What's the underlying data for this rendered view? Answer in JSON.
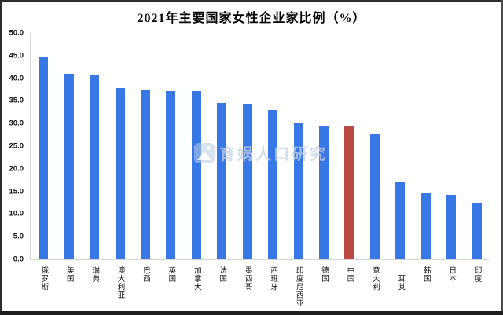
{
  "title": "2021年主要国家女性企业家比例（%）",
  "watermark": {
    "text": "育娲人口研究"
  },
  "frame": {
    "edge_color": "#2d2d2d",
    "bottom_bar_color": "#1e1e1e"
  },
  "chart_data": {
    "type": "bar",
    "title": "2021年主要国家女性企业家比例（%）",
    "categories": [
      "俄罗斯",
      "美国",
      "瑞典",
      "澳大利亚",
      "巴西",
      "英国",
      "加拿大",
      "法国",
      "墨西哥",
      "西班牙",
      "印度尼西亚",
      "德国",
      "中国",
      "意大利",
      "土耳其",
      "韩国",
      "日本",
      "印度"
    ],
    "values": [
      44.7,
      40.9,
      40.7,
      37.8,
      37.3,
      37.2,
      37.1,
      34.5,
      34.3,
      33.0,
      30.2,
      29.6,
      29.5,
      27.8,
      17.1,
      14.6,
      14.2,
      12.3
    ],
    "highlight_category": "中国",
    "highlight_index": 12,
    "bar_color": "#3778E6",
    "highlight_color": "#BB4A47",
    "axis_line_color": "#d6d6d6",
    "xlabel": "",
    "ylabel": "",
    "ylim": [
      0,
      50
    ],
    "ytick_labels": [
      "50.0",
      "45.0",
      "40.0",
      "35.0",
      "30.0",
      "25.0",
      "20.0",
      "15.0",
      "10.0",
      "5.0",
      "0.0"
    ],
    "grid": false,
    "legend_position": "none"
  }
}
